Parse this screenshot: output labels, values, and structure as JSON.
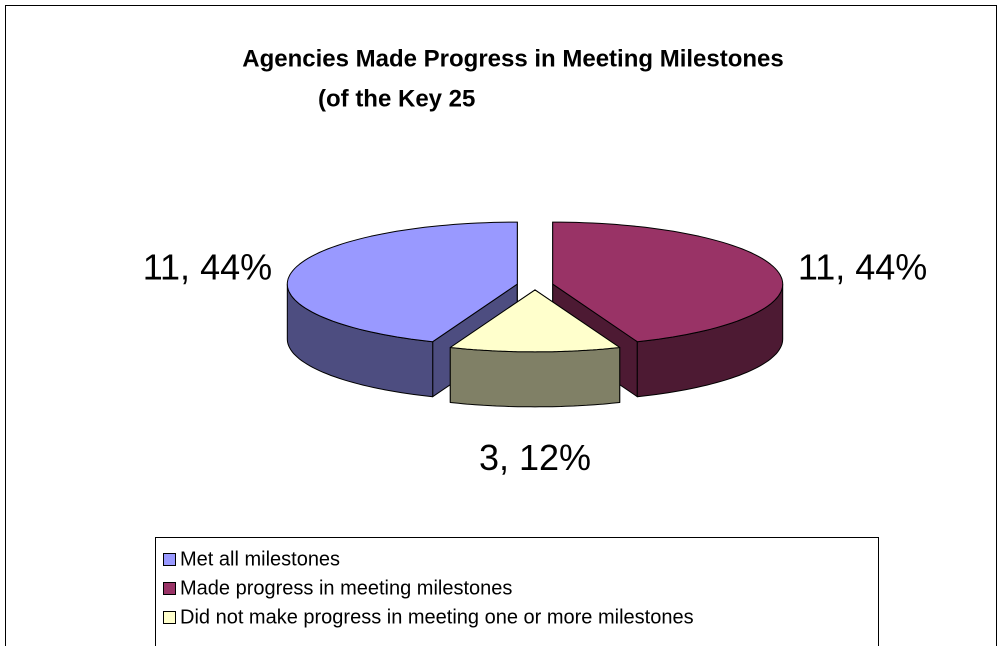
{
  "chart_data": {
    "type": "pie3d",
    "title": "Agencies Made Progress in Meeting Milestones",
    "subtitle": "(of the Key 25",
    "categories": [
      "Met all milestones",
      "Made progress in meeting milestones",
      "Did not make progress in meeting one or more milestones"
    ],
    "values": [
      11,
      11,
      3
    ],
    "value_labels": [
      "11, 44%",
      "11, 44%",
      "3, 12%"
    ],
    "colors": [
      "#9999ff",
      "#993366",
      "#ffffcc"
    ],
    "legend": "bottom"
  }
}
